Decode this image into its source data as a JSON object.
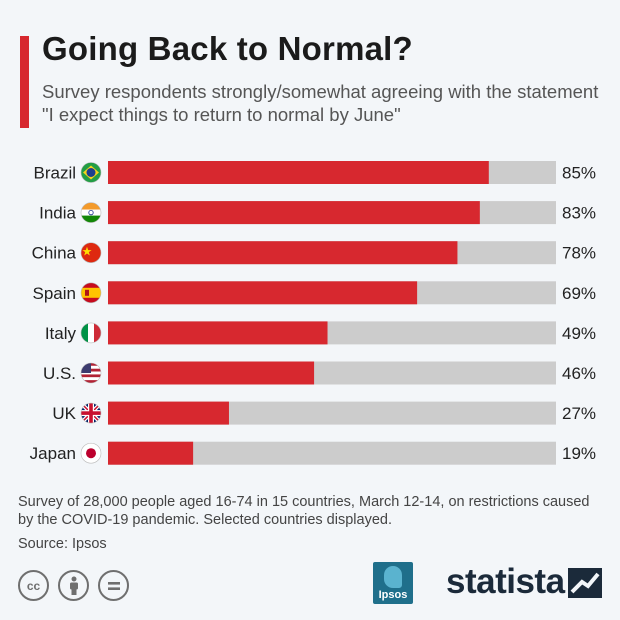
{
  "title": "Going Back to Normal?",
  "subtitle": "Survey respondents strongly/somewhat agreeing with the statement \"I expect things to return to normal by June\"",
  "footnote": "Survey of 28,000 people aged 16-74 in 15 countries, March 12-14, on restrictions caused by the COVID-19 pandemic. Selected countries displayed.",
  "source": "Source: Ipsos",
  "colors": {
    "bar": "#d7282f",
    "track": "#cccccc",
    "accent": "#d7282f"
  },
  "chart_data": {
    "type": "bar",
    "orientation": "horizontal",
    "title": "Going Back to Normal?",
    "categories": [
      "Brazil",
      "India",
      "China",
      "Spain",
      "Italy",
      "U.S.",
      "UK",
      "Japan"
    ],
    "flags": [
      "brazil-flag",
      "india-flag",
      "china-flag",
      "spain-flag",
      "italy-flag",
      "us-flag",
      "uk-flag",
      "japan-flag"
    ],
    "values": [
      85,
      83,
      78,
      69,
      49,
      46,
      27,
      19
    ],
    "labels": [
      "85%",
      "83%",
      "78%",
      "69%",
      "49%",
      "46%",
      "27%",
      "19%"
    ],
    "xlim": [
      0,
      100
    ],
    "unit": "%",
    "grid": false,
    "legend": "none"
  },
  "logos": {
    "ipsos": "Ipsos",
    "statista": "statista",
    "cc_icons": [
      "cc-icon",
      "by-icon",
      "nd-icon"
    ]
  }
}
